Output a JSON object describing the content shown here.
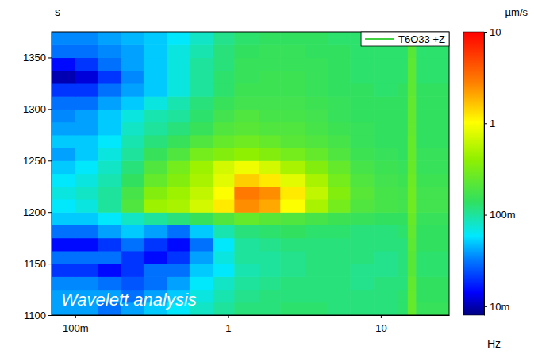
{
  "chart_data": {
    "type": "heatmap",
    "x_label": "Hz",
    "y_label": "s",
    "annotation": "Wavelett analysis",
    "log": "x",
    "xlim": [
      0.07,
      28
    ],
    "xticks": [
      {
        "value": 0.1,
        "label": "100m"
      },
      1,
      10
    ],
    "ylim": [
      1100,
      1375
    ],
    "yticks": [
      1100,
      1150,
      1200,
      1250,
      1300,
      1350
    ],
    "legend": "top-right",
    "series": [
      {
        "name": "T6O33 +Z",
        "color": "#00c000"
      }
    ],
    "colorbar": {
      "label": "µm/s",
      "log": true,
      "lim": [
        0.008,
        10
      ],
      "ticks": [
        {
          "value": 0.01,
          "label": "10m"
        },
        {
          "value": 0.1,
          "label": "100m"
        },
        1,
        10
      ]
    },
    "x_edges": [
      0.07,
      0.1,
      0.14,
      0.2,
      0.28,
      0.4,
      0.56,
      0.8,
      1.1,
      1.6,
      2.2,
      3.2,
      4.5,
      6.3,
      9,
      13,
      15,
      17,
      28
    ],
    "y_edges": [
      1100,
      1112.5,
      1125,
      1137.5,
      1150,
      1162.5,
      1175,
      1187.5,
      1200,
      1212.5,
      1225,
      1237.5,
      1250,
      1262.5,
      1275,
      1287.5,
      1300,
      1312.5,
      1325,
      1337.5,
      1350,
      1362.5,
      1375
    ],
    "z": [
      [
        0.04,
        0.04,
        0.03,
        0.04,
        0.05,
        0.06,
        0.08,
        0.1,
        0.12,
        0.12,
        0.13,
        0.13,
        0.12,
        0.12,
        0.12,
        0.13,
        0.25,
        0.15
      ],
      [
        0.04,
        0.04,
        0.04,
        0.03,
        0.04,
        0.05,
        0.07,
        0.09,
        0.11,
        0.12,
        0.12,
        0.12,
        0.12,
        0.12,
        0.12,
        0.13,
        0.25,
        0.14
      ],
      [
        0.035,
        0.035,
        0.03,
        0.025,
        0.03,
        0.04,
        0.06,
        0.08,
        0.1,
        0.11,
        0.12,
        0.12,
        0.12,
        0.11,
        0.12,
        0.12,
        0.24,
        0.14
      ],
      [
        0.02,
        0.02,
        0.015,
        0.02,
        0.03,
        0.03,
        0.05,
        0.06,
        0.09,
        0.1,
        0.11,
        0.12,
        0.12,
        0.11,
        0.11,
        0.12,
        0.22,
        0.13
      ],
      [
        0.03,
        0.03,
        0.03,
        0.02,
        0.015,
        0.02,
        0.04,
        0.07,
        0.1,
        0.1,
        0.11,
        0.12,
        0.12,
        0.12,
        0.11,
        0.12,
        0.22,
        0.13
      ],
      [
        0.015,
        0.015,
        0.02,
        0.03,
        0.02,
        0.015,
        0.03,
        0.06,
        0.1,
        0.11,
        0.12,
        0.12,
        0.12,
        0.12,
        0.12,
        0.12,
        0.23,
        0.14
      ],
      [
        0.03,
        0.03,
        0.04,
        0.05,
        0.04,
        0.03,
        0.05,
        0.09,
        0.12,
        0.13,
        0.14,
        0.13,
        0.13,
        0.12,
        0.12,
        0.13,
        0.24,
        0.14
      ],
      [
        0.05,
        0.05,
        0.06,
        0.08,
        0.1,
        0.12,
        0.15,
        0.2,
        0.25,
        0.22,
        0.2,
        0.18,
        0.16,
        0.15,
        0.14,
        0.14,
        0.26,
        0.15
      ],
      [
        0.06,
        0.07,
        0.1,
        0.2,
        0.45,
        0.5,
        0.7,
        1.2,
        2.5,
        2,
        1,
        0.5,
        0.3,
        0.2,
        0.18,
        0.17,
        0.28,
        0.17
      ],
      [
        0.07,
        0.08,
        0.1,
        0.18,
        0.35,
        0.45,
        0.6,
        1.0,
        3.0,
        2.5,
        1.2,
        0.6,
        0.35,
        0.22,
        0.18,
        0.17,
        0.28,
        0.17
      ],
      [
        0.06,
        0.07,
        0.09,
        0.14,
        0.25,
        0.35,
        0.5,
        0.8,
        1.5,
        1.2,
        0.8,
        0.5,
        0.3,
        0.2,
        0.17,
        0.16,
        0.27,
        0.16
      ],
      [
        0.05,
        0.06,
        0.08,
        0.12,
        0.2,
        0.3,
        0.45,
        0.7,
        0.9,
        0.7,
        0.5,
        0.35,
        0.25,
        0.18,
        0.16,
        0.15,
        0.26,
        0.15
      ],
      [
        0.04,
        0.05,
        0.07,
        0.1,
        0.15,
        0.2,
        0.3,
        0.35,
        0.4,
        0.35,
        0.3,
        0.25,
        0.2,
        0.16,
        0.15,
        0.14,
        0.25,
        0.15
      ],
      [
        0.05,
        0.05,
        0.06,
        0.09,
        0.12,
        0.15,
        0.2,
        0.25,
        0.28,
        0.25,
        0.22,
        0.2,
        0.18,
        0.15,
        0.14,
        0.14,
        0.25,
        0.14
      ],
      [
        0.04,
        0.04,
        0.05,
        0.08,
        0.1,
        0.12,
        0.15,
        0.2,
        0.22,
        0.2,
        0.2,
        0.18,
        0.16,
        0.15,
        0.14,
        0.14,
        0.24,
        0.14
      ],
      [
        0.035,
        0.04,
        0.05,
        0.07,
        0.09,
        0.1,
        0.13,
        0.17,
        0.2,
        0.18,
        0.18,
        0.17,
        0.15,
        0.14,
        0.14,
        0.14,
        0.24,
        0.14
      ],
      [
        0.03,
        0.03,
        0.04,
        0.05,
        0.07,
        0.09,
        0.12,
        0.15,
        0.17,
        0.17,
        0.17,
        0.16,
        0.15,
        0.14,
        0.14,
        0.14,
        0.24,
        0.14
      ],
      [
        0.02,
        0.02,
        0.03,
        0.04,
        0.05,
        0.07,
        0.1,
        0.13,
        0.16,
        0.16,
        0.16,
        0.15,
        0.14,
        0.14,
        0.13,
        0.14,
        0.23,
        0.14
      ],
      [
        0.01,
        0.012,
        0.02,
        0.035,
        0.05,
        0.07,
        0.1,
        0.13,
        0.15,
        0.16,
        0.16,
        0.15,
        0.14,
        0.13,
        0.13,
        0.13,
        0.23,
        0.13
      ],
      [
        0.015,
        0.02,
        0.03,
        0.04,
        0.05,
        0.07,
        0.1,
        0.12,
        0.15,
        0.15,
        0.15,
        0.15,
        0.14,
        0.13,
        0.13,
        0.13,
        0.23,
        0.13
      ],
      [
        0.03,
        0.03,
        0.035,
        0.04,
        0.05,
        0.07,
        0.09,
        0.12,
        0.14,
        0.15,
        0.15,
        0.14,
        0.14,
        0.13,
        0.13,
        0.13,
        0.22,
        0.13
      ],
      [
        0.035,
        0.035,
        0.04,
        0.045,
        0.05,
        0.06,
        0.08,
        0.11,
        0.13,
        0.14,
        0.14,
        0.14,
        0.13,
        0.13,
        0.13,
        0.13,
        0.22,
        0.13
      ]
    ]
  }
}
